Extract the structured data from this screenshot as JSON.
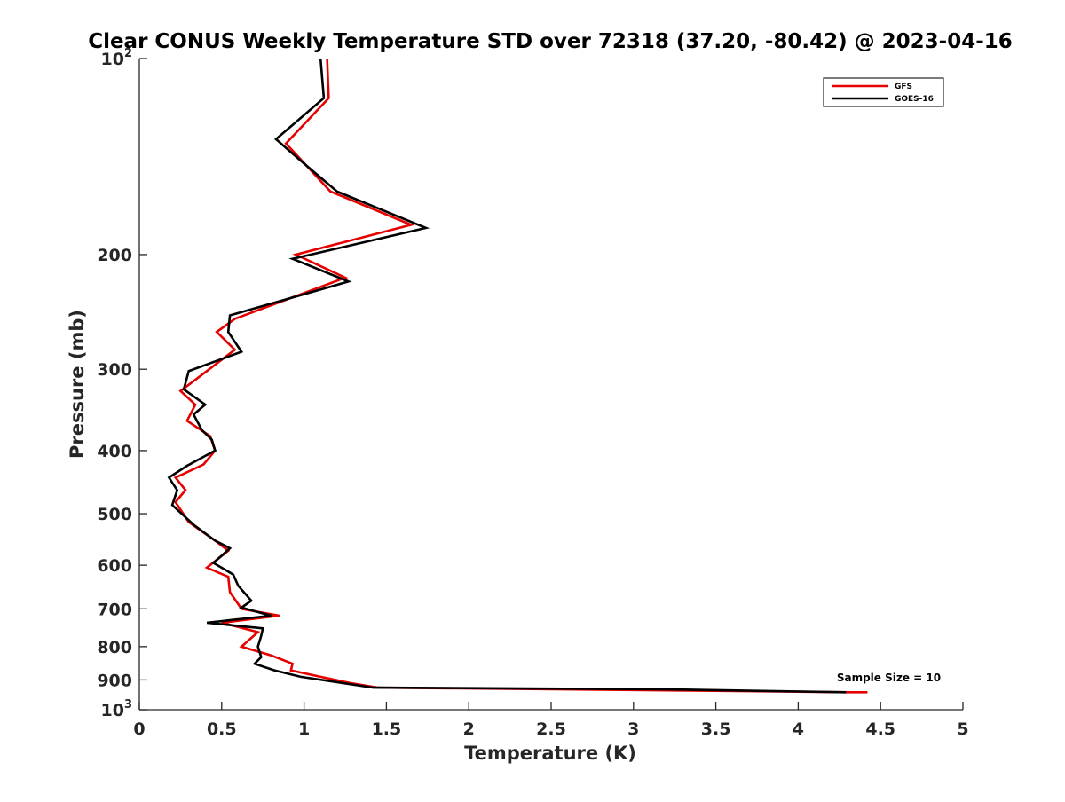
{
  "chart_data": {
    "type": "line",
    "title": "Clear CONUS Weekly Temperature STD over 72318 (37.20, -80.42) @ 2023-04-16",
    "xlabel": "Temperature (K)",
    "ylabel": "Pressure (mb)",
    "xlim": [
      0,
      5
    ],
    "ylim": [
      100,
      1000
    ],
    "y_scale": "log",
    "y_reversed": true,
    "grid": false,
    "legend_position": "top-right",
    "x_ticks": [
      {
        "value": 0,
        "label": "0"
      },
      {
        "value": 0.5,
        "label": "0.5"
      },
      {
        "value": 1,
        "label": "1"
      },
      {
        "value": 1.5,
        "label": "1.5"
      },
      {
        "value": 2,
        "label": "2"
      },
      {
        "value": 2.5,
        "label": "2.5"
      },
      {
        "value": 3,
        "label": "3"
      },
      {
        "value": 3.5,
        "label": "3.5"
      },
      {
        "value": 4,
        "label": "4"
      },
      {
        "value": 4.5,
        "label": "4.5"
      },
      {
        "value": 5,
        "label": "5"
      }
    ],
    "y_ticks": [
      {
        "value": 100,
        "label": "10",
        "sup": "2"
      },
      {
        "value": 200,
        "label": "200"
      },
      {
        "value": 300,
        "label": "300"
      },
      {
        "value": 400,
        "label": "400"
      },
      {
        "value": 500,
        "label": "500"
      },
      {
        "value": 600,
        "label": "600"
      },
      {
        "value": 700,
        "label": "700"
      },
      {
        "value": 800,
        "label": "800"
      },
      {
        "value": 900,
        "label": "900"
      },
      {
        "value": 1000,
        "label": "10",
        "sup": "3"
      }
    ],
    "annotation": "Sample Size = 10",
    "annotation_at": {
      "x": 4.55,
      "y": 905
    },
    "series": [
      {
        "name": "GFS",
        "color": "#e60000",
        "points": [
          [
            1.14,
            100
          ],
          [
            1.15,
            115
          ],
          [
            0.89,
            135
          ],
          [
            1.16,
            160
          ],
          [
            1.65,
            180
          ],
          [
            0.95,
            200
          ],
          [
            1.25,
            217
          ],
          [
            0.58,
            251
          ],
          [
            0.47,
            263
          ],
          [
            0.58,
            280
          ],
          [
            0.35,
            310
          ],
          [
            0.25,
            324
          ],
          [
            0.34,
            340
          ],
          [
            0.29,
            360
          ],
          [
            0.43,
            380
          ],
          [
            0.46,
            400
          ],
          [
            0.39,
            420
          ],
          [
            0.22,
            440
          ],
          [
            0.28,
            460
          ],
          [
            0.22,
            480
          ],
          [
            0.3,
            515
          ],
          [
            0.46,
            550
          ],
          [
            0.54,
            570
          ],
          [
            0.41,
            605
          ],
          [
            0.54,
            625
          ],
          [
            0.55,
            660
          ],
          [
            0.62,
            700
          ],
          [
            0.85,
            717
          ],
          [
            0.5,
            735
          ],
          [
            0.72,
            760
          ],
          [
            0.62,
            800
          ],
          [
            0.8,
            825
          ],
          [
            0.93,
            850
          ],
          [
            0.92,
            870
          ],
          [
            1.1,
            890
          ],
          [
            1.28,
            910
          ],
          [
            1.45,
            925
          ],
          [
            3.42,
            935
          ],
          [
            4.3,
            940
          ],
          [
            4.42,
            940
          ]
        ]
      },
      {
        "name": "GOES-16",
        "color": "#000000",
        "points": [
          [
            1.1,
            100
          ],
          [
            1.12,
            115
          ],
          [
            0.83,
            133
          ],
          [
            1.0,
            145
          ],
          [
            1.2,
            160
          ],
          [
            1.74,
            182
          ],
          [
            0.93,
            203
          ],
          [
            1.27,
            220
          ],
          [
            0.55,
            248
          ],
          [
            0.54,
            263
          ],
          [
            0.62,
            282
          ],
          [
            0.3,
            302
          ],
          [
            0.27,
            322
          ],
          [
            0.4,
            340
          ],
          [
            0.33,
            352
          ],
          [
            0.38,
            372
          ],
          [
            0.44,
            385
          ],
          [
            0.46,
            400
          ],
          [
            0.29,
            422
          ],
          [
            0.18,
            440
          ],
          [
            0.23,
            460
          ],
          [
            0.2,
            485
          ],
          [
            0.33,
            520
          ],
          [
            0.46,
            550
          ],
          [
            0.55,
            565
          ],
          [
            0.45,
            595
          ],
          [
            0.57,
            620
          ],
          [
            0.6,
            645
          ],
          [
            0.68,
            680
          ],
          [
            0.62,
            697
          ],
          [
            0.8,
            717
          ],
          [
            0.41,
            735
          ],
          [
            0.75,
            750
          ],
          [
            0.74,
            770
          ],
          [
            0.72,
            800
          ],
          [
            0.74,
            830
          ],
          [
            0.7,
            850
          ],
          [
            0.82,
            870
          ],
          [
            0.98,
            890
          ],
          [
            1.42,
            925
          ],
          [
            3.16,
            930
          ],
          [
            4.29,
            940
          ]
        ]
      }
    ]
  }
}
